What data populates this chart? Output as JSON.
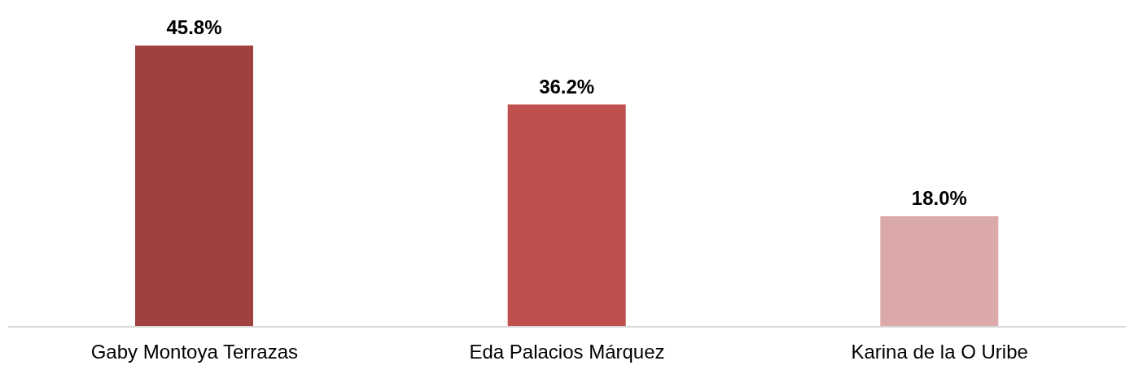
{
  "chart_data": {
    "type": "bar",
    "categories": [
      "Gaby Montoya Terrazas",
      "Eda Palacios Márquez",
      "Karina de la O Uribe"
    ],
    "values": [
      45.8,
      36.2,
      18.0
    ],
    "value_labels": [
      "45.8%",
      "36.2%",
      "18.0%"
    ],
    "colors": [
      "#9e413f",
      "#c0504d",
      "#dba9a9"
    ],
    "grid": false,
    "legend": false
  }
}
